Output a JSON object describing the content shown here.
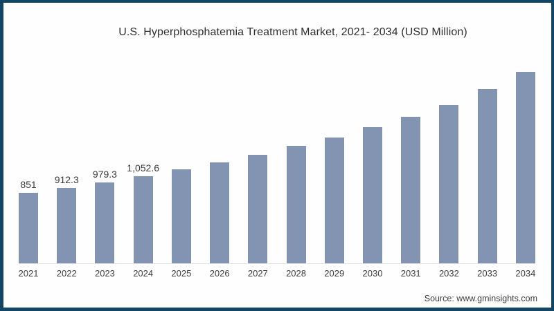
{
  "title": "U.S. Hyperphosphatemia Treatment Market, 2021- 2034 (USD Million)",
  "source": "Source: www.gminsights.com",
  "colors": {
    "bar": "#8394b2",
    "frame": "#134564",
    "title_text": "#2f2f2f",
    "label_text": "#3b3b3b",
    "axis_line": "#e4e4e4",
    "background": "#fefefe"
  },
  "chart_data": {
    "type": "bar",
    "title": "U.S. Hyperphosphatemia Treatment Market, 2021- 2034 (USD Million)",
    "unit": "USD Million",
    "categories": [
      "2021",
      "2022",
      "2023",
      "2024",
      "2025",
      "2026",
      "2027",
      "2028",
      "2029",
      "2030",
      "2031",
      "2032",
      "2033",
      "2034"
    ],
    "values": [
      851,
      912.3,
      979.3,
      1052.6,
      1130,
      1215,
      1310,
      1415,
      1520,
      1640,
      1770,
      1910,
      2100,
      2310
    ],
    "value_labels_shown": [
      "851",
      "912.3",
      "979.3",
      "1,052.6",
      "",
      "",
      "",
      "",
      "",
      "",
      "",
      "",
      "",
      ""
    ],
    "xlabel": "",
    "ylabel": "",
    "ylim": [
      0,
      2400
    ],
    "grid": false,
    "legend": false,
    "source": "Source: www.gminsights.com"
  }
}
